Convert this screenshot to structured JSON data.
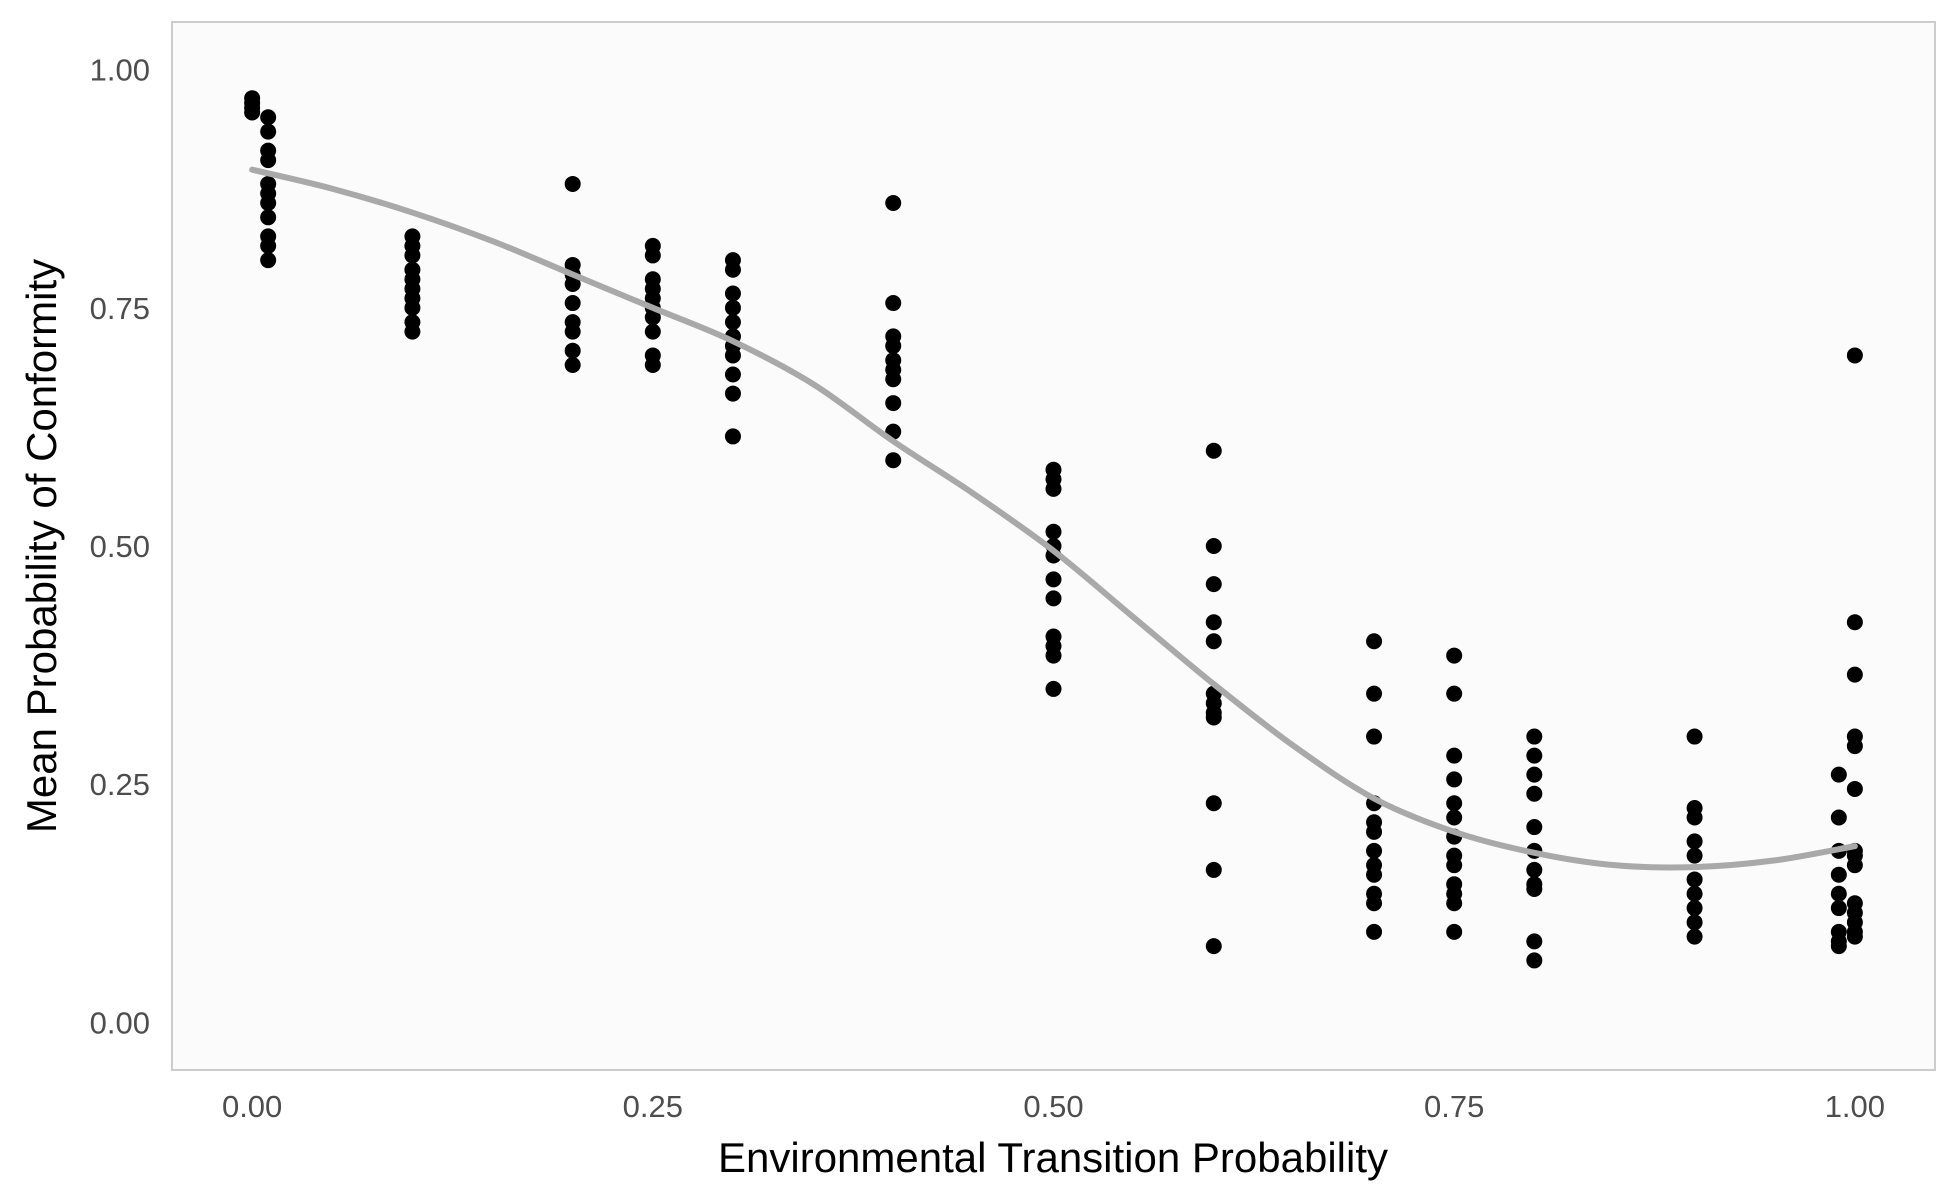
{
  "chart_data": {
    "type": "scatter",
    "title": "",
    "xlabel": "Environmental Transition Probability",
    "ylabel": "Mean Probability of Conformity",
    "xlim": [
      -0.05,
      1.05
    ],
    "ylim": [
      -0.05,
      1.05
    ],
    "x_ticks": [
      0.0,
      0.25,
      0.5,
      0.75,
      1.0
    ],
    "x_tick_labels": [
      "0.00",
      "0.25",
      "0.50",
      "0.75",
      "1.00"
    ],
    "y_ticks": [
      0.0,
      0.25,
      0.5,
      0.75,
      1.0
    ],
    "y_tick_labels": [
      "0.00",
      "0.25",
      "0.50",
      "0.75",
      "1.00"
    ],
    "grid": false,
    "legend": "none",
    "colors": {
      "panel_background": "#fbfbfb",
      "panel_border": "#cccccc",
      "points": "#000000",
      "smooth_line": "#a9a9a9"
    },
    "series": [
      {
        "type": "scatter",
        "points": [
          [
            0.0,
            0.97
          ],
          [
            0.0,
            0.965
          ],
          [
            0.0,
            0.96
          ],
          [
            0.0,
            0.955
          ],
          [
            0.01,
            0.95
          ],
          [
            0.01,
            0.935
          ],
          [
            0.01,
            0.915
          ],
          [
            0.01,
            0.905
          ],
          [
            0.01,
            0.88
          ],
          [
            0.01,
            0.87
          ],
          [
            0.01,
            0.86
          ],
          [
            0.01,
            0.845
          ],
          [
            0.01,
            0.825
          ],
          [
            0.01,
            0.815
          ],
          [
            0.01,
            0.8
          ],
          [
            0.1,
            0.825
          ],
          [
            0.1,
            0.815
          ],
          [
            0.1,
            0.805
          ],
          [
            0.1,
            0.79
          ],
          [
            0.1,
            0.78
          ],
          [
            0.1,
            0.77
          ],
          [
            0.1,
            0.76
          ],
          [
            0.1,
            0.75
          ],
          [
            0.1,
            0.735
          ],
          [
            0.1,
            0.725
          ],
          [
            0.2,
            0.88
          ],
          [
            0.2,
            0.795
          ],
          [
            0.2,
            0.785
          ],
          [
            0.2,
            0.775
          ],
          [
            0.2,
            0.755
          ],
          [
            0.2,
            0.735
          ],
          [
            0.2,
            0.725
          ],
          [
            0.2,
            0.705
          ],
          [
            0.2,
            0.69
          ],
          [
            0.25,
            0.815
          ],
          [
            0.25,
            0.805
          ],
          [
            0.25,
            0.78
          ],
          [
            0.25,
            0.77
          ],
          [
            0.25,
            0.76
          ],
          [
            0.25,
            0.75
          ],
          [
            0.25,
            0.74
          ],
          [
            0.25,
            0.725
          ],
          [
            0.25,
            0.7
          ],
          [
            0.25,
            0.69
          ],
          [
            0.3,
            0.8
          ],
          [
            0.3,
            0.79
          ],
          [
            0.3,
            0.765
          ],
          [
            0.3,
            0.75
          ],
          [
            0.3,
            0.735
          ],
          [
            0.3,
            0.72
          ],
          [
            0.3,
            0.71
          ],
          [
            0.3,
            0.7
          ],
          [
            0.3,
            0.68
          ],
          [
            0.3,
            0.66
          ],
          [
            0.3,
            0.615
          ],
          [
            0.4,
            0.86
          ],
          [
            0.4,
            0.755
          ],
          [
            0.4,
            0.72
          ],
          [
            0.4,
            0.71
          ],
          [
            0.4,
            0.695
          ],
          [
            0.4,
            0.685
          ],
          [
            0.4,
            0.675
          ],
          [
            0.4,
            0.65
          ],
          [
            0.4,
            0.62
          ],
          [
            0.4,
            0.59
          ],
          [
            0.5,
            0.58
          ],
          [
            0.5,
            0.57
          ],
          [
            0.5,
            0.56
          ],
          [
            0.5,
            0.515
          ],
          [
            0.5,
            0.5
          ],
          [
            0.5,
            0.49
          ],
          [
            0.5,
            0.465
          ],
          [
            0.5,
            0.445
          ],
          [
            0.5,
            0.405
          ],
          [
            0.5,
            0.395
          ],
          [
            0.5,
            0.385
          ],
          [
            0.5,
            0.35
          ],
          [
            0.6,
            0.6
          ],
          [
            0.6,
            0.5
          ],
          [
            0.6,
            0.46
          ],
          [
            0.6,
            0.42
          ],
          [
            0.6,
            0.4
          ],
          [
            0.6,
            0.345
          ],
          [
            0.6,
            0.335
          ],
          [
            0.6,
            0.325
          ],
          [
            0.6,
            0.32
          ],
          [
            0.6,
            0.23
          ],
          [
            0.6,
            0.16
          ],
          [
            0.6,
            0.08
          ],
          [
            0.7,
            0.4
          ],
          [
            0.7,
            0.345
          ],
          [
            0.7,
            0.3
          ],
          [
            0.7,
            0.23
          ],
          [
            0.7,
            0.21
          ],
          [
            0.7,
            0.2
          ],
          [
            0.7,
            0.18
          ],
          [
            0.7,
            0.165
          ],
          [
            0.7,
            0.155
          ],
          [
            0.7,
            0.135
          ],
          [
            0.7,
            0.125
          ],
          [
            0.7,
            0.095
          ],
          [
            0.75,
            0.385
          ],
          [
            0.75,
            0.345
          ],
          [
            0.75,
            0.28
          ],
          [
            0.75,
            0.255
          ],
          [
            0.75,
            0.23
          ],
          [
            0.75,
            0.215
          ],
          [
            0.75,
            0.195
          ],
          [
            0.75,
            0.175
          ],
          [
            0.75,
            0.165
          ],
          [
            0.75,
            0.145
          ],
          [
            0.75,
            0.135
          ],
          [
            0.75,
            0.125
          ],
          [
            0.75,
            0.095
          ],
          [
            0.8,
            0.3
          ],
          [
            0.8,
            0.28
          ],
          [
            0.8,
            0.26
          ],
          [
            0.8,
            0.24
          ],
          [
            0.8,
            0.205
          ],
          [
            0.8,
            0.18
          ],
          [
            0.8,
            0.16
          ],
          [
            0.8,
            0.145
          ],
          [
            0.8,
            0.14
          ],
          [
            0.8,
            0.085
          ],
          [
            0.8,
            0.065
          ],
          [
            0.9,
            0.3
          ],
          [
            0.9,
            0.225
          ],
          [
            0.9,
            0.215
          ],
          [
            0.9,
            0.19
          ],
          [
            0.9,
            0.175
          ],
          [
            0.9,
            0.15
          ],
          [
            0.9,
            0.135
          ],
          [
            0.9,
            0.12
          ],
          [
            0.9,
            0.105
          ],
          [
            0.9,
            0.09
          ],
          [
            0.99,
            0.26
          ],
          [
            0.99,
            0.215
          ],
          [
            0.99,
            0.18
          ],
          [
            0.99,
            0.155
          ],
          [
            0.99,
            0.135
          ],
          [
            0.99,
            0.12
          ],
          [
            0.99,
            0.095
          ],
          [
            0.99,
            0.085
          ],
          [
            0.99,
            0.08
          ],
          [
            1.0,
            0.7
          ],
          [
            1.0,
            0.42
          ],
          [
            1.0,
            0.365
          ],
          [
            1.0,
            0.3
          ],
          [
            1.0,
            0.29
          ],
          [
            1.0,
            0.245
          ],
          [
            1.0,
            0.18
          ],
          [
            1.0,
            0.175
          ],
          [
            1.0,
            0.165
          ],
          [
            1.0,
            0.125
          ],
          [
            1.0,
            0.115
          ],
          [
            1.0,
            0.105
          ],
          [
            1.0,
            0.095
          ],
          [
            1.0,
            0.09
          ]
        ]
      },
      {
        "type": "line",
        "smooth": true,
        "x": [
          0.0,
          0.05,
          0.1,
          0.15,
          0.2,
          0.25,
          0.3,
          0.35,
          0.4,
          0.45,
          0.5,
          0.55,
          0.6,
          0.65,
          0.7,
          0.75,
          0.8,
          0.85,
          0.9,
          0.95,
          1.0
        ],
        "y": [
          0.895,
          0.875,
          0.85,
          0.82,
          0.785,
          0.75,
          0.715,
          0.67,
          0.61,
          0.555,
          0.495,
          0.425,
          0.355,
          0.29,
          0.235,
          0.2,
          0.178,
          0.165,
          0.163,
          0.17,
          0.185
        ]
      }
    ]
  }
}
